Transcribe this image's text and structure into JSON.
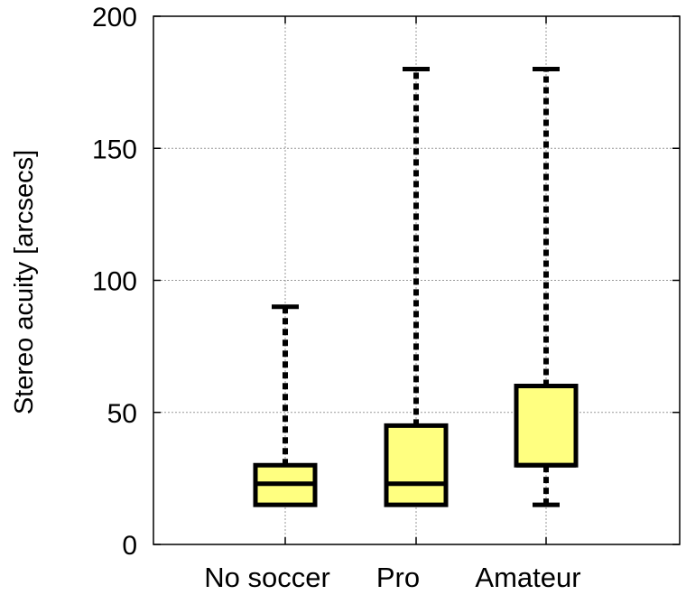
{
  "chart_data": {
    "type": "boxplot",
    "title": "",
    "xlabel": "",
    "ylabel": "Stereo acuity [arcsecs]",
    "ylim": [
      0,
      200
    ],
    "yticks": [
      0,
      50,
      100,
      150,
      200
    ],
    "grid": true,
    "categories": [
      "No soccer",
      "Pro",
      "Amateur"
    ],
    "boxes": [
      {
        "category": "No soccer",
        "whisker_low": 15,
        "q1": 15,
        "median": 23,
        "q3": 30,
        "whisker_high": 90
      },
      {
        "category": "Pro",
        "whisker_low": 15,
        "q1": 15,
        "median": 23,
        "q3": 45,
        "whisker_high": 180
      },
      {
        "category": "Amateur",
        "whisker_low": 15,
        "q1": 30,
        "median": 30,
        "q3": 60,
        "whisker_high": 180
      }
    ],
    "colors": {
      "box_fill": "#ffff80",
      "stroke": "#000000",
      "grid": "#999999"
    }
  }
}
